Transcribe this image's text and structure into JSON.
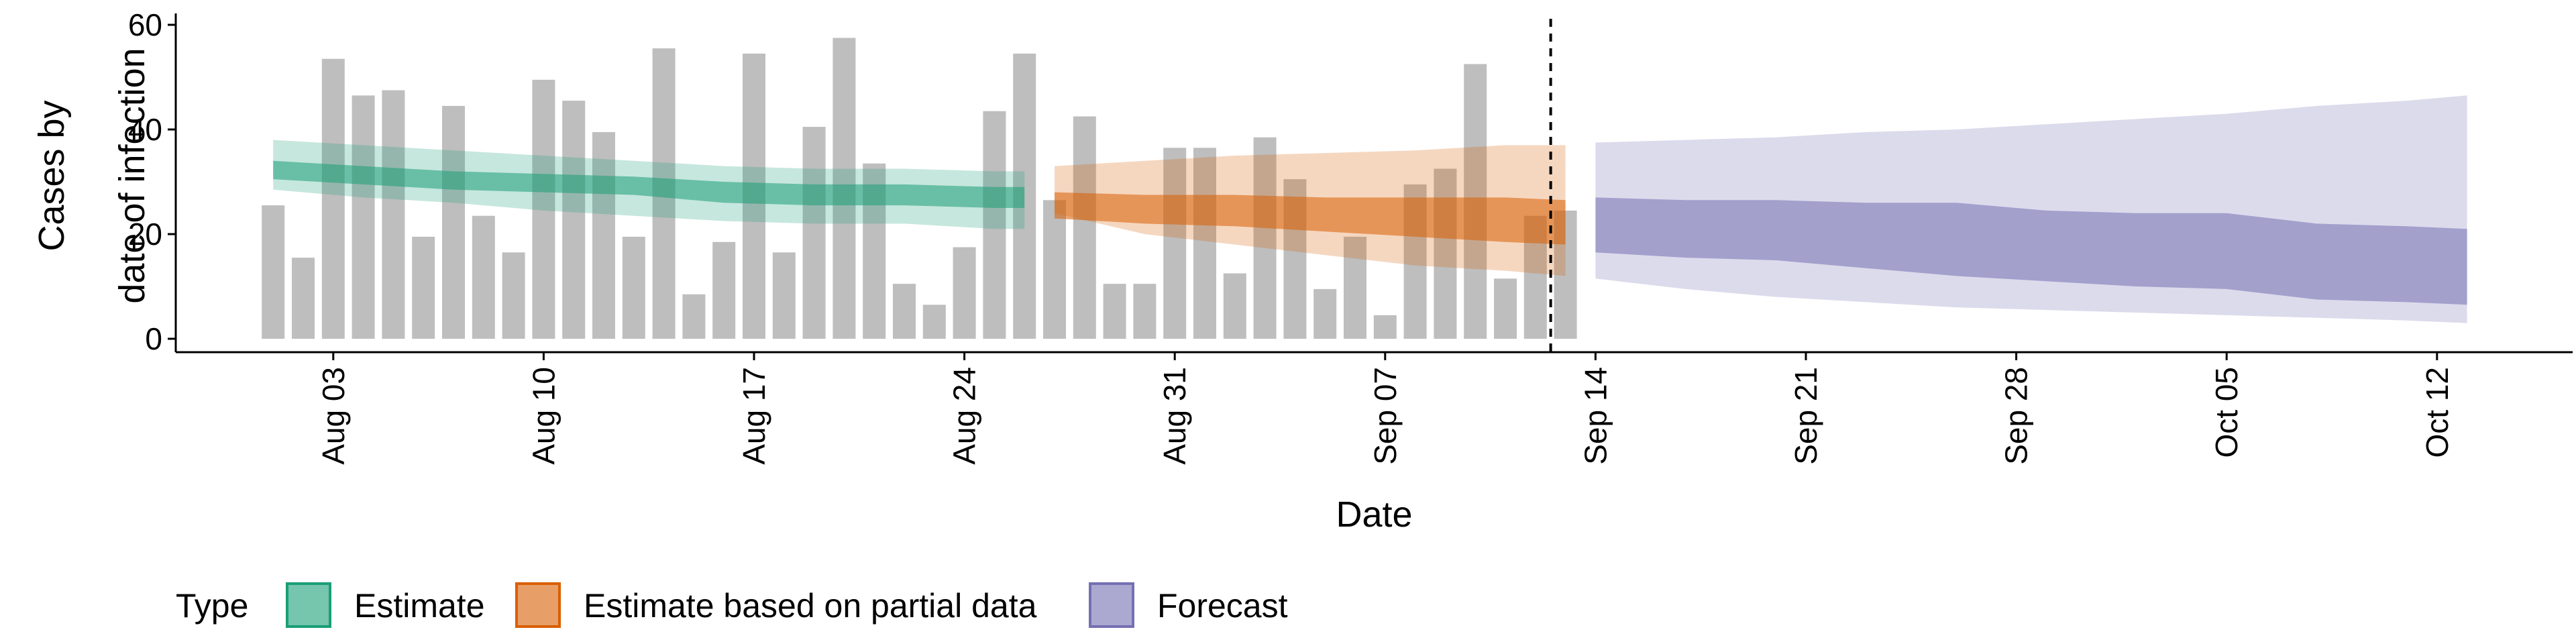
{
  "chart_data": {
    "type": "bar",
    "xlabel": "Date",
    "ylabel_lines": [
      "Cases by",
      "date of infection"
    ],
    "ylim": [
      0,
      60
    ],
    "yticks": [
      0,
      20,
      40,
      60
    ],
    "x_start": "Aug 01",
    "x_end": "Oct 15",
    "xticks": [
      "Aug 03",
      "Aug 10",
      "Aug 17",
      "Aug 24",
      "Aug 31",
      "Sep 07",
      "Sep 14",
      "Sep 21",
      "Sep 28",
      "Oct 05",
      "Oct 12"
    ],
    "estimate_date": "Sep 13",
    "bars": {
      "dates": [
        "Aug 01",
        "Aug 02",
        "Aug 03",
        "Aug 04",
        "Aug 05",
        "Aug 06",
        "Aug 07",
        "Aug 08",
        "Aug 09",
        "Aug 10",
        "Aug 11",
        "Aug 12",
        "Aug 13",
        "Aug 14",
        "Aug 15",
        "Aug 16",
        "Aug 17",
        "Aug 18",
        "Aug 19",
        "Aug 20",
        "Aug 21",
        "Aug 22",
        "Aug 23",
        "Aug 24",
        "Aug 25",
        "Aug 26",
        "Aug 27",
        "Aug 28",
        "Aug 29",
        "Aug 30",
        "Aug 31",
        "Sep 01",
        "Sep 02",
        "Sep 03",
        "Sep 04",
        "Sep 05",
        "Sep 06",
        "Sep 07",
        "Sep 08",
        "Sep 09",
        "Sep 10",
        "Sep 11",
        "Sep 12",
        "Sep 13"
      ],
      "values": [
        25.5,
        15.5,
        53.5,
        46.5,
        47.5,
        19.5,
        44.5,
        23.5,
        16.5,
        49.5,
        45.5,
        39.5,
        19.5,
        55.5,
        8.5,
        18.5,
        54.5,
        16.5,
        40.5,
        57.5,
        33.5,
        10.5,
        6.5,
        17.5,
        43.5,
        54.5,
        26.5,
        42.5,
        10.5,
        10.5,
        36.5,
        36.5,
        12.5,
        38.5,
        30.5,
        9.5,
        19.5,
        4.5,
        29.5,
        32.5,
        52.5,
        11.5,
        23.5,
        24.5
      ],
      "color": "#bebebe"
    },
    "series": [
      {
        "name": "Estimate",
        "color": "#1b9e77",
        "dates": [
          "Aug 01",
          "Aug 04",
          "Aug 07",
          "Aug 10",
          "Aug 13",
          "Aug 16",
          "Aug 19",
          "Aug 22",
          "Aug 25",
          "Aug 26"
        ],
        "outer_low": [
          28.5,
          27,
          26,
          24.5,
          23.5,
          22.5,
          22,
          22,
          21,
          21
        ],
        "outer_high": [
          38,
          37,
          36,
          35,
          34,
          33,
          32.5,
          32.5,
          32,
          32
        ],
        "median_low": [
          30.5,
          29.5,
          28.5,
          28,
          27.5,
          26,
          25.5,
          25.5,
          25,
          25
        ],
        "median_high": [
          34,
          33,
          32,
          31.5,
          31,
          30,
          29.5,
          29.5,
          29,
          29
        ]
      },
      {
        "name": "Estimate based on partial data",
        "color": "#d95f02",
        "dates": [
          "Aug 27",
          "Aug 30",
          "Sep 02",
          "Sep 05",
          "Sep 08",
          "Sep 11",
          "Sep 13"
        ],
        "outer_low": [
          24,
          20,
          18,
          16,
          14,
          13,
          12
        ],
        "outer_high": [
          33,
          34,
          35,
          35.5,
          36,
          37,
          37
        ],
        "median_low": [
          23,
          22,
          21.5,
          20.5,
          19.5,
          18.5,
          18
        ],
        "median_high": [
          28,
          27.5,
          27.5,
          27,
          27,
          27,
          26.5
        ]
      },
      {
        "name": "Forecast",
        "color": "#7570b3",
        "dates": [
          "Sep 14",
          "Sep 17",
          "Sep 20",
          "Sep 23",
          "Sep 26",
          "Sep 29",
          "Oct 02",
          "Oct 05",
          "Oct 08",
          "Oct 11",
          "Oct 13"
        ],
        "outer_low": [
          11.5,
          9.5,
          8,
          7,
          6,
          5.5,
          5,
          4.5,
          4,
          3.5,
          3
        ],
        "outer_high": [
          37.5,
          38,
          38.5,
          39.5,
          40,
          41,
          42,
          43,
          44.5,
          45.5,
          46.5
        ],
        "median_low": [
          16.5,
          15.5,
          15,
          13.5,
          12,
          11,
          10,
          9.5,
          7.5,
          7,
          6.5
        ],
        "median_high": [
          27,
          26.5,
          26.5,
          26,
          26,
          24.5,
          24,
          24,
          22,
          21.5,
          21
        ]
      }
    ],
    "legend": {
      "title": "Type",
      "position": "bottom",
      "items": [
        "Estimate",
        "Estimate based on partial data",
        "Forecast"
      ]
    },
    "grid": false
  }
}
